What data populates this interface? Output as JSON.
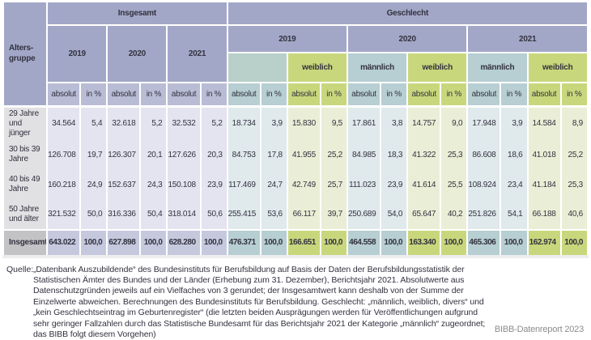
{
  "table": {
    "corner_label": "Alters-\ngruppe",
    "group_insgesamt": "Insgesamt",
    "group_geschlecht": "Geschlecht",
    "years": [
      "2019",
      "2020",
      "2021"
    ],
    "gender_maennlich": "männlich",
    "gender_weiblich": "weiblich",
    "gender_blank": "",
    "sub_absolut": "absolut",
    "sub_percent": "in %",
    "rows": [
      {
        "label": "29 Jahre und jünger",
        "values": [
          "34.564",
          "5,4",
          "32.618",
          "5,2",
          "32.532",
          "5,2",
          "18.734",
          "3,9",
          "15.830",
          "9,5",
          "17.861",
          "3,8",
          "14.757",
          "9,0",
          "17.948",
          "3,9",
          "14.584",
          "8,9"
        ]
      },
      {
        "label": "30 bis 39 Jahre",
        "values": [
          "126.708",
          "19,7",
          "126.307",
          "20,1",
          "127.626",
          "20,3",
          "84.753",
          "17,8",
          "41.955",
          "25,2",
          "84.985",
          "18,3",
          "41.322",
          "25,3",
          "86.608",
          "18,6",
          "41.018",
          "25,2"
        ]
      },
      {
        "label": "40 bis 49 Jahre",
        "values": [
          "160.218",
          "24,9",
          "152.637",
          "24,3",
          "150.108",
          "23,9",
          "117.469",
          "24,7",
          "42.749",
          "25,7",
          "111.023",
          "23,9",
          "41.614",
          "25,5",
          "108.924",
          "23,4",
          "41.184",
          "25,3"
        ]
      },
      {
        "label": "50 Jahre und älter",
        "values": [
          "321.532",
          "50,0",
          "316.336",
          "50,4",
          "318.014",
          "50,6",
          "255.415",
          "53,6",
          "66.117",
          "39,7",
          "250.689",
          "54,0",
          "65.647",
          "40,2",
          "251.826",
          "54,1",
          "66.188",
          "40,6"
        ]
      },
      {
        "label": "Insgesamt",
        "is_total": true,
        "values": [
          "643.022",
          "100,0",
          "627.898",
          "100,0",
          "628.280",
          "100,0",
          "476.371",
          "100,0",
          "166.651",
          "100,0",
          "464.558",
          "100,0",
          "163.340",
          "100,0",
          "465.306",
          "100,0",
          "162.974",
          "100,0"
        ]
      }
    ]
  },
  "footer": {
    "source_label": "Quelle:",
    "source_text": "„Datenbank Auszubildende“ des Bundesinstituts für Berufsbildung auf Basis der Daten der Berufsbildungsstatistik der\nStatistischen Ämter des Bundes und der Länder (Erhebung zum 31. Dezember), Berichtsjahr 2021. Absolutwerte aus\nDatenschutzgründen jeweils auf ein Vielfaches von 3 gerundet; der Insgesamtwert kann deshalb von der Summe der\nEinzelwerte abweichen. Berechnungen des Bundesinstituts für Berufsbildung. Geschlecht: „männlich, weiblich, divers“ und\n„kein Geschlechtseintrag im Geburtenregister“ (die letzten beiden Ausprägungen werden für Veröffentlichungen aufgrund\nsehr geringer Fallzahlen durch das Statistische Bundesamt für das Berichtsjahr 2021 der Kategorie „männlich“ zugeordnet;\ndas BIBB folgt diesem Vorgehen)",
    "report_credit": "BIBB-Datenreport 2023"
  },
  "colors": {
    "header_blue": "#a3a7c7",
    "subhead_lavender": "#b9bcd5",
    "male_teal": "#b7ced2",
    "male_teal_blank": "#b9cfc9",
    "male_teal_light": "#e0e9ec",
    "female_green": "#c9d77c",
    "female_green_light": "#eaeed6",
    "row_lavender": "#e4e4f0",
    "total_blue": "#c6c8de",
    "label_gray": "#e1e0e3",
    "total_label_gray": "#c3c2c5",
    "text_dark": "#32323f",
    "credit_gray": "#8c8c8c"
  }
}
